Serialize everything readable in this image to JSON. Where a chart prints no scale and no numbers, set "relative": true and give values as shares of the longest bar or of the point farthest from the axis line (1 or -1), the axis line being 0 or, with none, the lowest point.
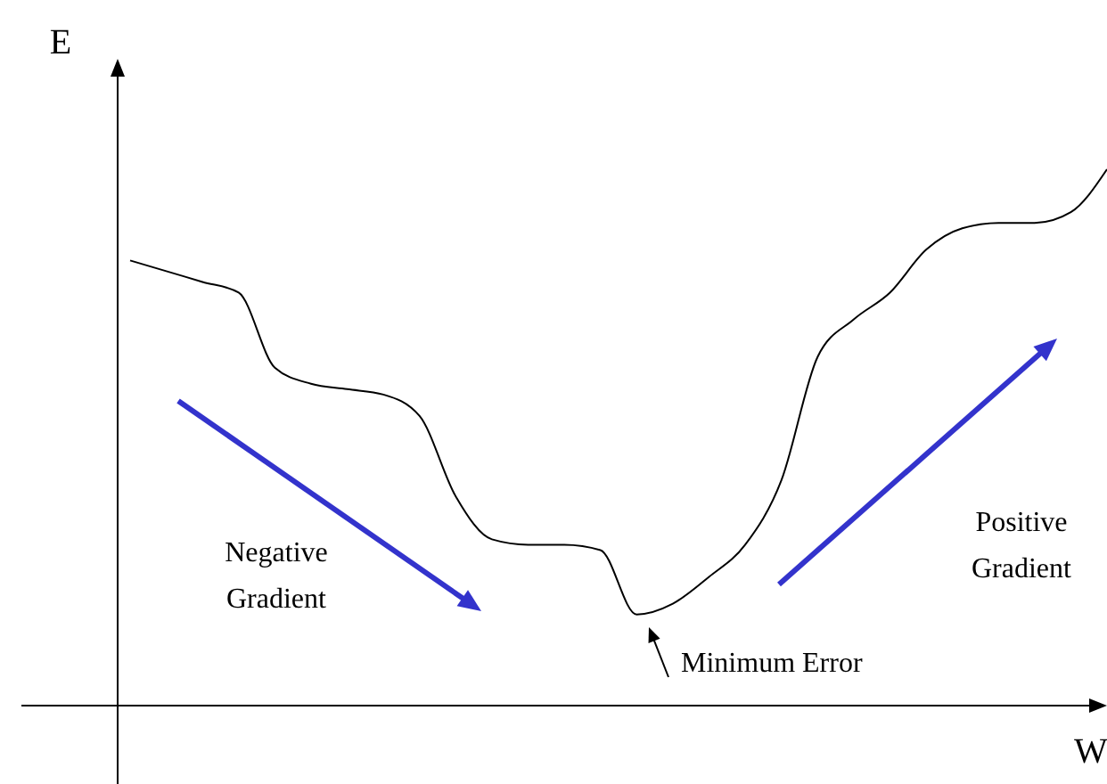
{
  "chart_data": {
    "type": "line",
    "relative": true,
    "xlabel": "W",
    "ylabel": "E",
    "categories": [
      null,
      null,
      null,
      null,
      null,
      null,
      null,
      null,
      null,
      null,
      null,
      null,
      null,
      null,
      null,
      null,
      null,
      null,
      null,
      null,
      null,
      null,
      null,
      null,
      null,
      null,
      null,
      null
    ],
    "series": [
      {
        "color": "#000000",
        "values": [
          0.83,
          0.81,
          0.79,
          0.77,
          0.63,
          0.6,
          0.59,
          0.58,
          0.54,
          0.39,
          0.31,
          0.3,
          0.3,
          0.29,
          0.17,
          0.19,
          0.24,
          0.3,
          0.42,
          0.65,
          0.72,
          0.77,
          0.85,
          0.89,
          0.9,
          0.9,
          0.92,
          1.0
        ]
      }
    ],
    "marker": "none",
    "line_style": "solid",
    "annotations": [
      "Negative Gradient",
      "Positive Gradient",
      "Minimum Error"
    ]
  }
}
